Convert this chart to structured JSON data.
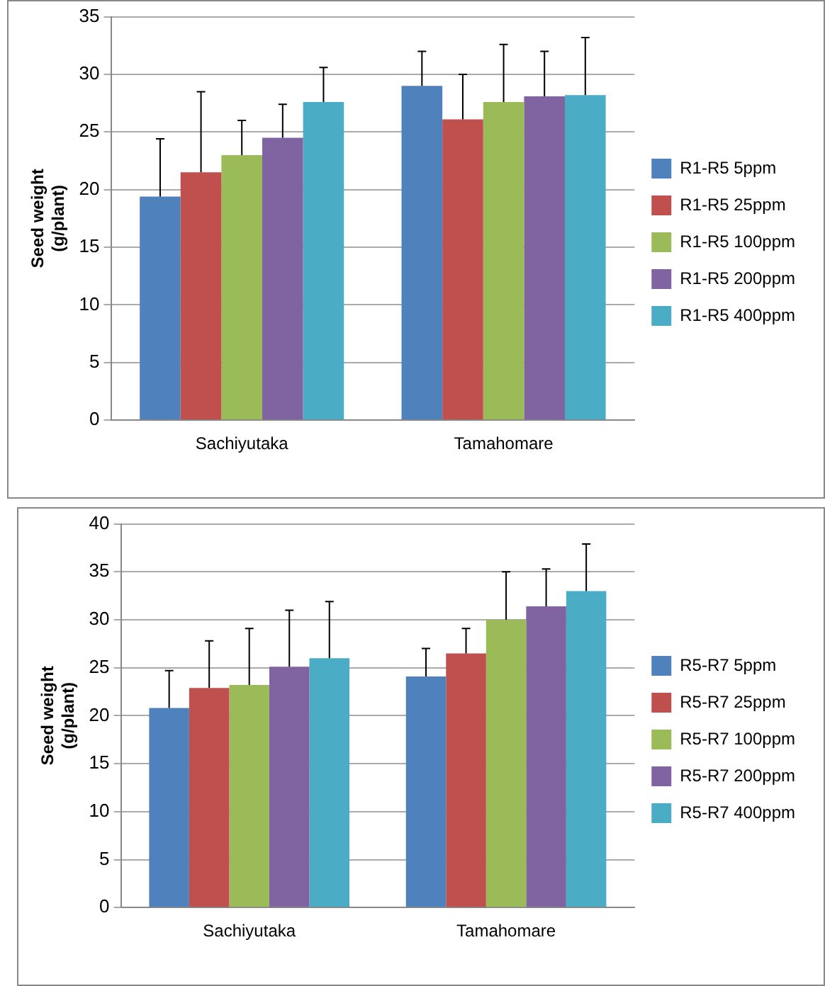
{
  "chart_data": [
    {
      "type": "bar",
      "ylabel": "Seed weight\n(g/plant)",
      "categories": [
        "Sachiyutaka",
        "Tamahomare"
      ],
      "ylim": [
        0,
        35
      ],
      "yticks": [
        0,
        5,
        10,
        15,
        20,
        25,
        30,
        35
      ],
      "grid": "y",
      "legend": "right",
      "series": [
        {
          "name": "R1-R5 5ppm",
          "color": "#4f81bd",
          "values": [
            19.4,
            29.0
          ],
          "errors": [
            [
              19.4,
              24.4
            ],
            [
              29.0,
              32.0
            ]
          ]
        },
        {
          "name": "R1-R5 25ppm",
          "color": "#c0504d",
          "values": [
            21.5,
            26.1
          ],
          "errors": [
            [
              21.5,
              28.5
            ],
            [
              26.1,
              30.0
            ]
          ]
        },
        {
          "name": "R1-R5 100ppm",
          "color": "#9bbb59",
          "values": [
            23.0,
            27.6
          ],
          "errors": [
            [
              23.0,
              26.0
            ],
            [
              27.6,
              32.6
            ]
          ]
        },
        {
          "name": "R1-R5 200ppm",
          "color": "#8064a2",
          "values": [
            24.5,
            28.1
          ],
          "errors": [
            [
              24.5,
              27.4
            ],
            [
              28.1,
              32.0
            ]
          ]
        },
        {
          "name": "R1-R5 400ppm",
          "color": "#4bacc6",
          "values": [
            27.6,
            28.2
          ],
          "errors": [
            [
              27.6,
              30.6
            ],
            [
              28.2,
              33.2
            ]
          ]
        }
      ]
    },
    {
      "type": "bar",
      "ylabel": "Seed weight\n(g/plant)",
      "categories": [
        "Sachiyutaka",
        "Tamahomare"
      ],
      "ylim": [
        0,
        40
      ],
      "yticks": [
        0,
        5,
        10,
        15,
        20,
        25,
        30,
        35,
        40
      ],
      "grid": "y",
      "legend": "right",
      "series": [
        {
          "name": "R5-R7 5ppm",
          "color": "#4f81bd",
          "values": [
            20.8,
            24.1
          ],
          "errors": [
            [
              20.8,
              24.7
            ],
            [
              24.1,
              27.0
            ]
          ]
        },
        {
          "name": "R5-R7 25ppm",
          "color": "#c0504d",
          "values": [
            22.9,
            26.5
          ],
          "errors": [
            [
              22.9,
              27.8
            ],
            [
              26.5,
              29.1
            ]
          ]
        },
        {
          "name": "R5-R7 100ppm",
          "color": "#9bbb59",
          "values": [
            23.2,
            30.0
          ],
          "errors": [
            [
              23.2,
              29.1
            ],
            [
              30.0,
              35.0
            ]
          ]
        },
        {
          "name": "R5-R7 200ppm",
          "color": "#8064a2",
          "values": [
            25.1,
            31.4
          ],
          "errors": [
            [
              25.1,
              31.0
            ],
            [
              31.4,
              35.3
            ]
          ]
        },
        {
          "name": "R5-R7 400ppm",
          "color": "#4bacc6",
          "values": [
            26.0,
            33.0
          ],
          "errors": [
            [
              26.0,
              31.9
            ],
            [
              33.0,
              37.9
            ]
          ]
        }
      ]
    }
  ]
}
